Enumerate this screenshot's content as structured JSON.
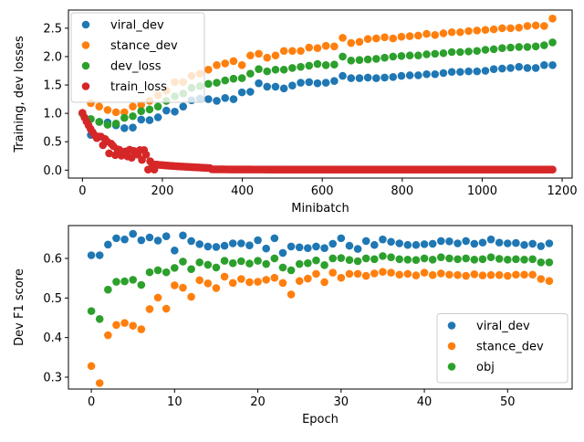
{
  "chart_data": [
    {
      "type": "scatter",
      "xlabel": "Minibatch",
      "ylabel": "Training, dev losses",
      "xlim": [
        -35,
        1225
      ],
      "ylim": [
        -0.14,
        2.82
      ],
      "xticks": [
        0,
        200,
        400,
        600,
        800,
        1000,
        1200
      ],
      "yticks": [
        0.0,
        0.5,
        1.0,
        1.5,
        2.0,
        2.5
      ],
      "yticks_text": [
        "0.0",
        "0.5",
        "1.0",
        "1.5",
        "2.0",
        "2.5"
      ],
      "legend_position": "upper-left",
      "x": [
        0,
        21,
        42,
        63,
        84,
        105,
        126,
        147,
        168,
        189,
        210,
        231,
        252,
        273,
        294,
        315,
        336,
        357,
        378,
        399,
        420,
        441,
        462,
        483,
        504,
        525,
        546,
        567,
        588,
        609,
        630,
        651,
        672,
        693,
        714,
        735,
        756,
        777,
        798,
        819,
        840,
        861,
        882,
        903,
        924,
        945,
        966,
        987,
        1008,
        1029,
        1050,
        1071,
        1092,
        1113,
        1134,
        1155,
        1176
      ],
      "series": [
        {
          "name": "viral_dev",
          "color": "#1f77b4",
          "values": [
            1.0,
            0.62,
            0.85,
            0.84,
            0.79,
            0.74,
            0.75,
            0.89,
            0.88,
            0.93,
            1.05,
            1.03,
            1.12,
            1.23,
            1.26,
            1.25,
            1.22,
            1.27,
            1.25,
            1.37,
            1.38,
            1.53,
            1.47,
            1.47,
            1.44,
            1.49,
            1.54,
            1.55,
            1.53,
            1.54,
            1.57,
            1.66,
            1.62,
            1.62,
            1.63,
            1.62,
            1.63,
            1.64,
            1.66,
            1.67,
            1.67,
            1.69,
            1.69,
            1.71,
            1.73,
            1.73,
            1.74,
            1.74,
            1.75,
            1.78,
            1.79,
            1.8,
            1.82,
            1.8,
            1.8,
            1.85,
            1.85
          ]
        },
        {
          "name": "stance_dev",
          "color": "#ff7f0e",
          "values": [
            1.0,
            1.18,
            1.12,
            1.06,
            1.02,
            1.02,
            1.12,
            1.15,
            1.22,
            1.32,
            1.4,
            1.55,
            1.55,
            1.66,
            1.7,
            1.77,
            1.85,
            1.88,
            1.92,
            1.85,
            2.02,
            2.05,
            1.98,
            2.02,
            2.1,
            2.1,
            2.1,
            2.16,
            2.15,
            2.19,
            2.18,
            2.33,
            2.24,
            2.26,
            2.31,
            2.32,
            2.34,
            2.32,
            2.35,
            2.36,
            2.37,
            2.4,
            2.38,
            2.41,
            2.43,
            2.43,
            2.45,
            2.46,
            2.47,
            2.48,
            2.5,
            2.5,
            2.51,
            2.54,
            2.55,
            2.54,
            2.67
          ]
        },
        {
          "name": "dev_loss",
          "color": "#2ca02c",
          "values": [
            1.0,
            0.9,
            0.85,
            0.8,
            0.82,
            0.92,
            0.95,
            1.04,
            1.07,
            1.12,
            1.22,
            1.3,
            1.35,
            1.45,
            1.48,
            1.52,
            1.54,
            1.58,
            1.61,
            1.62,
            1.7,
            1.78,
            1.74,
            1.77,
            1.77,
            1.8,
            1.82,
            1.84,
            1.87,
            1.85,
            1.86,
            2.0,
            1.93,
            1.94,
            1.95,
            1.96,
            1.98,
            2.0,
            2.01,
            2.02,
            2.02,
            2.04,
            2.05,
            2.06,
            2.08,
            2.08,
            2.09,
            2.1,
            2.12,
            2.13,
            2.15,
            2.16,
            2.17,
            2.17,
            2.18,
            2.2,
            2.25
          ]
        },
        {
          "name": "train_loss",
          "color": "#d62728",
          "dense": true,
          "x_start": 0,
          "x_end": 1176,
          "n": 230,
          "initial": 1.0,
          "decay": 55
        }
      ]
    },
    {
      "type": "scatter",
      "xlabel": "Epoch",
      "ylabel": "Dev F1 score",
      "xlim": [
        -2.75,
        57.75
      ],
      "ylim": [
        0.27,
        0.683
      ],
      "xticks": [
        0,
        10,
        20,
        30,
        40,
        50
      ],
      "yticks": [
        0.3,
        0.4,
        0.5,
        0.6
      ],
      "yticks_text": [
        "0.3",
        "0.4",
        "0.5",
        "0.6"
      ],
      "legend_position": "lower-right",
      "x": [
        0,
        1,
        2,
        3,
        4,
        5,
        6,
        7,
        8,
        9,
        10,
        11,
        12,
        13,
        14,
        15,
        16,
        17,
        18,
        19,
        20,
        21,
        22,
        23,
        24,
        25,
        26,
        27,
        28,
        29,
        30,
        31,
        32,
        33,
        34,
        35,
        36,
        37,
        38,
        39,
        40,
        41,
        42,
        43,
        44,
        45,
        46,
        47,
        48,
        49,
        50,
        51,
        52,
        53,
        54,
        55
      ],
      "series": [
        {
          "name": "viral_dev",
          "color": "#1f77b4",
          "values": [
            0.608,
            0.608,
            0.635,
            0.651,
            0.648,
            0.662,
            0.646,
            0.653,
            0.645,
            0.656,
            0.62,
            0.658,
            0.644,
            0.636,
            0.63,
            0.629,
            0.632,
            0.638,
            0.638,
            0.633,
            0.646,
            0.625,
            0.651,
            0.614,
            0.63,
            0.628,
            0.626,
            0.63,
            0.626,
            0.637,
            0.651,
            0.632,
            0.624,
            0.644,
            0.634,
            0.648,
            0.642,
            0.638,
            0.634,
            0.634,
            0.636,
            0.637,
            0.644,
            0.643,
            0.638,
            0.644,
            0.637,
            0.64,
            0.648,
            0.64,
            0.638,
            0.639,
            0.634,
            0.637,
            0.631,
            0.638
          ]
        },
        {
          "name": "stance_dev",
          "color": "#ff7f0e",
          "values": [
            0.328,
            0.285,
            0.406,
            0.432,
            0.437,
            0.43,
            0.421,
            0.472,
            0.501,
            0.473,
            0.532,
            0.526,
            0.503,
            0.545,
            0.537,
            0.525,
            0.554,
            0.538,
            0.548,
            0.54,
            0.541,
            0.546,
            0.551,
            0.538,
            0.509,
            0.543,
            0.549,
            0.561,
            0.54,
            0.564,
            0.551,
            0.561,
            0.561,
            0.556,
            0.562,
            0.566,
            0.564,
            0.559,
            0.561,
            0.557,
            0.564,
            0.558,
            0.562,
            0.559,
            0.558,
            0.556,
            0.56,
            0.557,
            0.558,
            0.558,
            0.556,
            0.559,
            0.559,
            0.559,
            0.548,
            0.543
          ]
        },
        {
          "name": "obj",
          "color": "#2ca02c",
          "values": [
            0.467,
            0.447,
            0.521,
            0.541,
            0.542,
            0.546,
            0.533,
            0.565,
            0.57,
            0.565,
            0.576,
            0.592,
            0.573,
            0.59,
            0.584,
            0.577,
            0.594,
            0.588,
            0.593,
            0.587,
            0.594,
            0.586,
            0.6,
            0.577,
            0.57,
            0.586,
            0.588,
            0.595,
            0.583,
            0.6,
            0.601,
            0.596,
            0.593,
            0.6,
            0.598,
            0.606,
            0.603,
            0.598,
            0.597,
            0.596,
            0.6,
            0.597,
            0.603,
            0.6,
            0.598,
            0.6,
            0.597,
            0.598,
            0.603,
            0.599,
            0.597,
            0.598,
            0.597,
            0.598,
            0.59,
            0.59
          ]
        }
      ]
    }
  ]
}
